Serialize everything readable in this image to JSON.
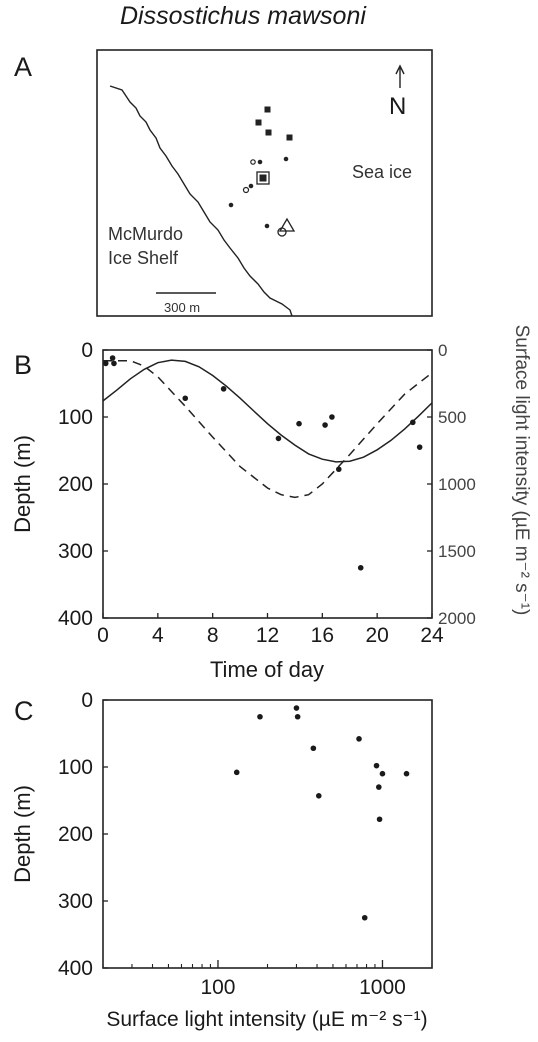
{
  "figure": {
    "title": "Dissostichus mawsoni",
    "panel_labels": [
      "A",
      "B",
      "C"
    ]
  },
  "map": {
    "north_label": "N",
    "sea_ice_label": "Sea ice",
    "ice_shelf_label_line1": "McMurdo",
    "ice_shelf_label_line2": "Ice Shelf",
    "scale_label": "300 m"
  },
  "chart_data": [
    {
      "panel": "B",
      "type": "scatter",
      "xlabel": "Time of day",
      "ylabel": "Depth (m)",
      "y2label": "Surface light intensity (µE m⁻² s⁻¹)",
      "xlim": [
        0,
        24
      ],
      "ylim": [
        0,
        400
      ],
      "y_inverted": true,
      "y2lim": [
        0,
        2000
      ],
      "y2_inverted": true,
      "xticks": [
        "0",
        "4",
        "8",
        "12",
        "16",
        "20",
        "24"
      ],
      "yticks": [
        "0",
        "100",
        "200",
        "300",
        "400"
      ],
      "y2ticks": [
        "0",
        "500",
        "1000",
        "1500",
        "2000"
      ],
      "points": [
        {
          "x": 0.2,
          "y": 20
        },
        {
          "x": 0.7,
          "y": 12
        },
        {
          "x": 0.8,
          "y": 20
        },
        {
          "x": 6.0,
          "y": 72
        },
        {
          "x": 8.8,
          "y": 58
        },
        {
          "x": 12.8,
          "y": 132
        },
        {
          "x": 14.3,
          "y": 110
        },
        {
          "x": 16.2,
          "y": 112
        },
        {
          "x": 16.7,
          "y": 100
        },
        {
          "x": 17.2,
          "y": 178
        },
        {
          "x": 18.8,
          "y": 325
        },
        {
          "x": 22.6,
          "y": 108
        },
        {
          "x": 23.1,
          "y": 145
        }
      ],
      "depth_curve": [
        {
          "x": 0,
          "y": 76
        },
        {
          "x": 1,
          "y": 60
        },
        {
          "x": 2,
          "y": 43
        },
        {
          "x": 3,
          "y": 29
        },
        {
          "x": 4,
          "y": 19
        },
        {
          "x": 5,
          "y": 15
        },
        {
          "x": 6,
          "y": 17
        },
        {
          "x": 7,
          "y": 25
        },
        {
          "x": 8,
          "y": 38
        },
        {
          "x": 9,
          "y": 54
        },
        {
          "x": 10,
          "y": 72
        },
        {
          "x": 11,
          "y": 91
        },
        {
          "x": 12,
          "y": 110
        },
        {
          "x": 13,
          "y": 127
        },
        {
          "x": 14,
          "y": 142
        },
        {
          "x": 15,
          "y": 155
        },
        {
          "x": 16,
          "y": 163
        },
        {
          "x": 17,
          "y": 167
        },
        {
          "x": 18,
          "y": 166
        },
        {
          "x": 19,
          "y": 160
        },
        {
          "x": 20,
          "y": 149
        },
        {
          "x": 21,
          "y": 135
        },
        {
          "x": 22,
          "y": 118
        },
        {
          "x": 23,
          "y": 99
        },
        {
          "x": 24,
          "y": 79
        }
      ],
      "light_curve": [
        {
          "x": 0,
          "y": 80
        },
        {
          "x": 2,
          "y": 80
        },
        {
          "x": 3,
          "y": 120
        },
        {
          "x": 4,
          "y": 200
        },
        {
          "x": 6,
          "y": 420
        },
        {
          "x": 8,
          "y": 650
        },
        {
          "x": 10,
          "y": 870
        },
        {
          "x": 12,
          "y": 1030
        },
        {
          "x": 13,
          "y": 1080
        },
        {
          "x": 14,
          "y": 1100
        },
        {
          "x": 15,
          "y": 1080
        },
        {
          "x": 16,
          "y": 1000
        },
        {
          "x": 18,
          "y": 780
        },
        {
          "x": 20,
          "y": 550
        },
        {
          "x": 22,
          "y": 330
        },
        {
          "x": 24,
          "y": 170
        }
      ]
    },
    {
      "panel": "C",
      "type": "scatter",
      "xlabel": "Surface light intensity (µE m⁻² s⁻¹)",
      "ylabel": "Depth (m)",
      "x_scale": "log",
      "xlim": [
        20,
        2000
      ],
      "ylim": [
        0,
        400
      ],
      "y_inverted": true,
      "xticks": [
        "100",
        "1000"
      ],
      "yticks": [
        "0",
        "100",
        "200",
        "300",
        "400"
      ],
      "points": [
        {
          "x": 130,
          "y": 108
        },
        {
          "x": 180,
          "y": 25
        },
        {
          "x": 300,
          "y": 12
        },
        {
          "x": 305,
          "y": 25
        },
        {
          "x": 380,
          "y": 72
        },
        {
          "x": 410,
          "y": 143
        },
        {
          "x": 720,
          "y": 58
        },
        {
          "x": 780,
          "y": 325
        },
        {
          "x": 920,
          "y": 98
        },
        {
          "x": 950,
          "y": 130
        },
        {
          "x": 960,
          "y": 178
        },
        {
          "x": 1000,
          "y": 110
        },
        {
          "x": 1400,
          "y": 110
        }
      ]
    }
  ]
}
